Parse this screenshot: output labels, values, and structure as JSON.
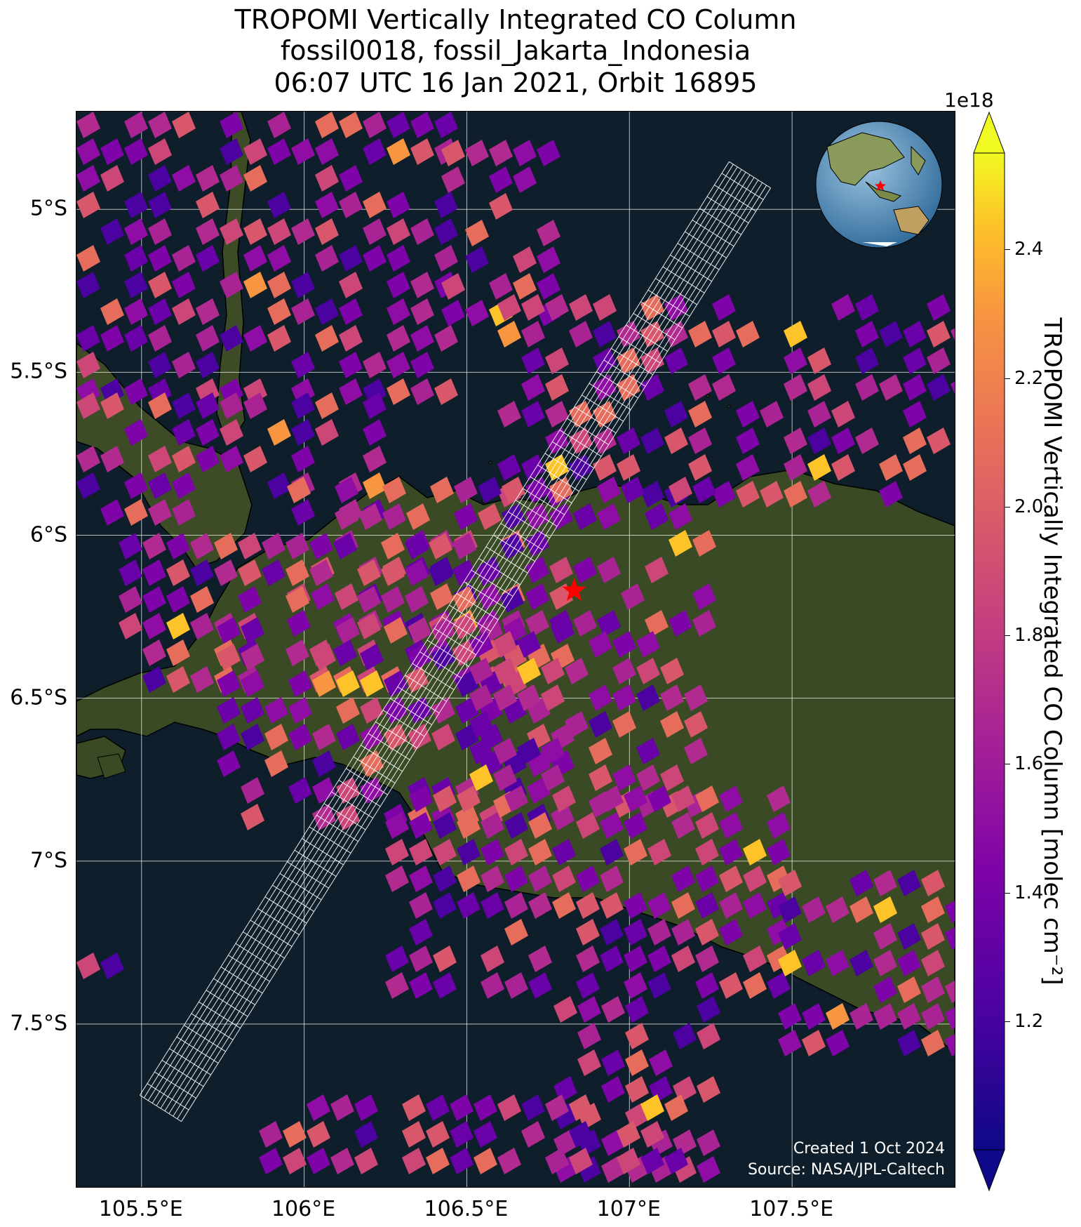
{
  "title": {
    "line1": "TROPOMI Vertically Integrated CO Column",
    "line2": "fossil0018, fossil_Jakarta_Indonesia",
    "line3": "06:07 UTC 16 Jan 2021, Orbit 16895"
  },
  "map": {
    "lon_range": [
      105.3,
      108.0
    ],
    "lat_range": [
      -8.0,
      -4.7
    ],
    "x_ticks": [
      {
        "value": 105.5,
        "label": "105.5°E"
      },
      {
        "value": 106.0,
        "label": "106°E"
      },
      {
        "value": 106.5,
        "label": "106.5°E"
      },
      {
        "value": 107.0,
        "label": "107°E"
      },
      {
        "value": 107.5,
        "label": "107.5°E"
      }
    ],
    "y_ticks": [
      {
        "value": -5.0,
        "label": "5°S"
      },
      {
        "value": -5.5,
        "label": "5.5°S"
      },
      {
        "value": -6.0,
        "label": "6°S"
      },
      {
        "value": -6.5,
        "label": "6.5°S"
      },
      {
        "value": -7.0,
        "label": "7°S"
      },
      {
        "value": -7.5,
        "label": "7.5°S"
      }
    ],
    "gridlines": true,
    "site_marker": {
      "lon": 106.83,
      "lat": -6.17,
      "color": "#ff0000",
      "icon": "star-icon"
    },
    "inset_globe": {
      "icon": "globe-icon",
      "marker_color": "#ff0000"
    },
    "credit_line1": "Created 1 Oct 2024",
    "credit_line2": "Source: NASA/JPL-Caltech",
    "colors": {
      "ocean": "#0f1e2b",
      "land": "#3c4a25",
      "grid": "#ffffff",
      "target_footprint": "#ffffff"
    }
  },
  "colorbar": {
    "label": "TROPOMI Vertically Integrated CO Column [molec cm⁻²]",
    "exponent_label": "1e18",
    "range": [
      1.0,
      2.55
    ],
    "ticks": [
      {
        "value": 1.2,
        "label": "1.2"
      },
      {
        "value": 1.4,
        "label": "1.4"
      },
      {
        "value": 1.6,
        "label": "1.6"
      },
      {
        "value": 1.8,
        "label": "1.8"
      },
      {
        "value": 2.0,
        "label": "2.0"
      },
      {
        "value": 2.2,
        "label": "2.2"
      },
      {
        "value": 2.4,
        "label": "2.4"
      }
    ],
    "colormap": "plasma",
    "extend": "both"
  }
}
